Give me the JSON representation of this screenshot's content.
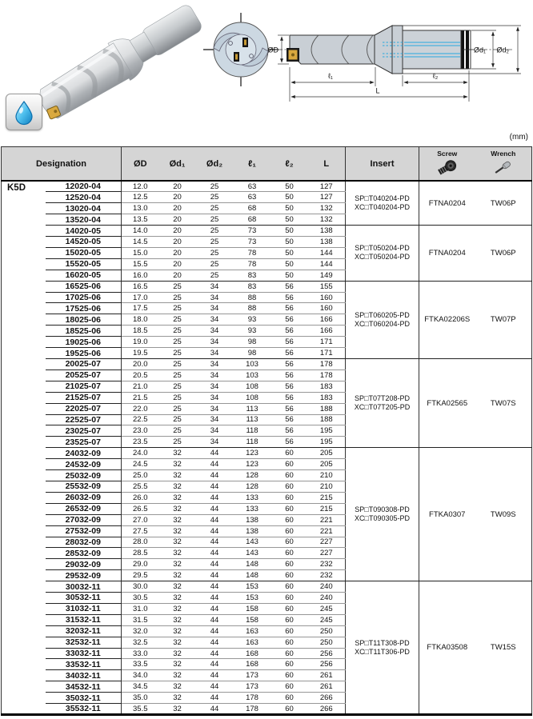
{
  "page": {
    "unit_label": "(mm)",
    "series_label": "K5D"
  },
  "diagram": {
    "labels": {
      "d": "ØD",
      "d1": "Ød₁",
      "d2": "Ød₂",
      "l1": "ℓ₁",
      "l2": "ℓ₂",
      "L": "L"
    },
    "coolant_color": "#29a8e0",
    "icons": {
      "coolant": "water-drop",
      "front_view": "drill-tip-front-view",
      "side_view": "drill-dimension-drawing"
    }
  },
  "table": {
    "headers": {
      "designation": "Designation",
      "od": "ØD",
      "od1": "Ød₁",
      "od2": "Ød₂",
      "l1": "ℓ₁",
      "l2": "ℓ₂",
      "len": "L",
      "insert": "Insert",
      "screw": "Screw",
      "wrench": "Wrench"
    },
    "groups": [
      {
        "insert": [
          "SP□T040204-PD",
          "XC□T040204-PD"
        ],
        "screw": "FTNA0204",
        "wrench": "TW06P",
        "rows": [
          [
            "12020-04",
            "12.0",
            "20",
            "25",
            "63",
            "50",
            "127"
          ],
          [
            "12520-04",
            "12.5",
            "20",
            "25",
            "63",
            "50",
            "127"
          ],
          [
            "13020-04",
            "13.0",
            "20",
            "25",
            "68",
            "50",
            "132"
          ],
          [
            "13520-04",
            "13.5",
            "20",
            "25",
            "68",
            "50",
            "132"
          ]
        ]
      },
      {
        "insert": [
          "SP□T050204-PD",
          "XC□T050204-PD"
        ],
        "screw": "FTNA0204",
        "wrench": "TW06P",
        "rows": [
          [
            "14020-05",
            "14.0",
            "20",
            "25",
            "73",
            "50",
            "138"
          ],
          [
            "14520-05",
            "14.5",
            "20",
            "25",
            "73",
            "50",
            "138"
          ],
          [
            "15020-05",
            "15.0",
            "20",
            "25",
            "78",
            "50",
            "144"
          ],
          [
            "15520-05",
            "15.5",
            "20",
            "25",
            "78",
            "50",
            "144"
          ],
          [
            "16020-05",
            "16.0",
            "20",
            "25",
            "83",
            "50",
            "149"
          ]
        ]
      },
      {
        "insert": [
          "SP□T060205-PD",
          "XC□T060204-PD"
        ],
        "screw": "FTKA02206S",
        "wrench": "TW07P",
        "rows": [
          [
            "16525-06",
            "16.5",
            "25",
            "34",
            "83",
            "56",
            "155"
          ],
          [
            "17025-06",
            "17.0",
            "25",
            "34",
            "88",
            "56",
            "160"
          ],
          [
            "17525-06",
            "17.5",
            "25",
            "34",
            "88",
            "56",
            "160"
          ],
          [
            "18025-06",
            "18.0",
            "25",
            "34",
            "93",
            "56",
            "166"
          ],
          [
            "18525-06",
            "18.5",
            "25",
            "34",
            "93",
            "56",
            "166"
          ],
          [
            "19025-06",
            "19.0",
            "25",
            "34",
            "98",
            "56",
            "171"
          ],
          [
            "19525-06",
            "19.5",
            "25",
            "34",
            "98",
            "56",
            "171"
          ]
        ]
      },
      {
        "insert": [
          "SP□T07T208-PD",
          "XC□T07T205-PD"
        ],
        "screw": "FTKA02565",
        "wrench": "TW07S",
        "rows": [
          [
            "20025-07",
            "20.0",
            "25",
            "34",
            "103",
            "56",
            "178"
          ],
          [
            "20525-07",
            "20.5",
            "25",
            "34",
            "103",
            "56",
            "178"
          ],
          [
            "21025-07",
            "21.0",
            "25",
            "34",
            "108",
            "56",
            "183"
          ],
          [
            "21525-07",
            "21.5",
            "25",
            "34",
            "108",
            "56",
            "183"
          ],
          [
            "22025-07",
            "22.0",
            "25",
            "34",
            "113",
            "56",
            "188"
          ],
          [
            "22525-07",
            "22.5",
            "25",
            "34",
            "113",
            "56",
            "188"
          ],
          [
            "23025-07",
            "23.0",
            "25",
            "34",
            "118",
            "56",
            "195"
          ],
          [
            "23525-07",
            "23.5",
            "25",
            "34",
            "118",
            "56",
            "195"
          ]
        ]
      },
      {
        "insert": [
          "SP□T090308-PD",
          "XC□T090305-PD"
        ],
        "screw": "FTKA0307",
        "wrench": "TW09S",
        "rows": [
          [
            "24032-09",
            "24.0",
            "32",
            "44",
            "123",
            "60",
            "205"
          ],
          [
            "24532-09",
            "24.5",
            "32",
            "44",
            "123",
            "60",
            "205"
          ],
          [
            "25032-09",
            "25.0",
            "32",
            "44",
            "128",
            "60",
            "210"
          ],
          [
            "25532-09",
            "25.5",
            "32",
            "44",
            "128",
            "60",
            "210"
          ],
          [
            "26032-09",
            "26.0",
            "32",
            "44",
            "133",
            "60",
            "215"
          ],
          [
            "26532-09",
            "26.5",
            "32",
            "44",
            "133",
            "60",
            "215"
          ],
          [
            "27032-09",
            "27.0",
            "32",
            "44",
            "138",
            "60",
            "221"
          ],
          [
            "27532-09",
            "27.5",
            "32",
            "44",
            "138",
            "60",
            "221"
          ],
          [
            "28032-09",
            "28.0",
            "32",
            "44",
            "143",
            "60",
            "227"
          ],
          [
            "28532-09",
            "28.5",
            "32",
            "44",
            "143",
            "60",
            "227"
          ],
          [
            "29032-09",
            "29.0",
            "32",
            "44",
            "148",
            "60",
            "232"
          ],
          [
            "29532-09",
            "29.5",
            "32",
            "44",
            "148",
            "60",
            "232"
          ]
        ]
      },
      {
        "insert": [
          "SP□T11T308-PD",
          "XC□T11T306-PD"
        ],
        "screw": "FTKA03508",
        "wrench": "TW15S",
        "rows": [
          [
            "30032-11",
            "30.0",
            "32",
            "44",
            "153",
            "60",
            "240"
          ],
          [
            "30532-11",
            "30.5",
            "32",
            "44",
            "153",
            "60",
            "240"
          ],
          [
            "31032-11",
            "31.0",
            "32",
            "44",
            "158",
            "60",
            "245"
          ],
          [
            "31532-11",
            "31.5",
            "32",
            "44",
            "158",
            "60",
            "245"
          ],
          [
            "32032-11",
            "32.0",
            "32",
            "44",
            "163",
            "60",
            "250"
          ],
          [
            "32532-11",
            "32.5",
            "32",
            "44",
            "163",
            "60",
            "250"
          ],
          [
            "33032-11",
            "33.0",
            "32",
            "44",
            "168",
            "60",
            "256"
          ],
          [
            "33532-11",
            "33.5",
            "32",
            "44",
            "168",
            "60",
            "256"
          ],
          [
            "34032-11",
            "34.0",
            "32",
            "44",
            "173",
            "60",
            "261"
          ],
          [
            "34532-11",
            "34.5",
            "32",
            "44",
            "173",
            "60",
            "261"
          ],
          [
            "35032-11",
            "35.0",
            "32",
            "44",
            "178",
            "60",
            "266"
          ],
          [
            "35532-11",
            "35.5",
            "32",
            "44",
            "178",
            "60",
            "266"
          ]
        ]
      }
    ]
  }
}
